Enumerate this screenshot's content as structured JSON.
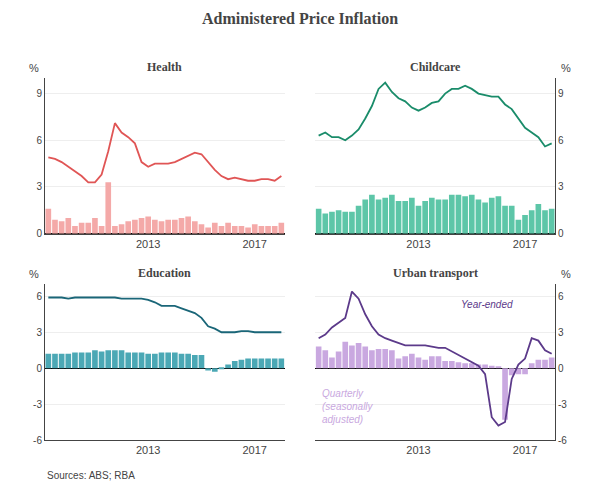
{
  "title": "Administered Price Inflation",
  "annotations": [
    "Sources: ABS; RBA"
  ],
  "chart_data": [
    {
      "type": "bar",
      "title": "Health",
      "ylabel": "%",
      "categories": [
        null,
        null,
        null,
        null,
        null,
        null,
        null,
        null,
        null,
        null,
        null,
        null,
        null,
        null,
        null,
        "2013",
        null,
        null,
        null,
        null,
        null,
        null,
        null,
        null,
        null,
        null,
        null,
        null,
        null,
        null,
        null,
        "2017",
        null,
        null,
        null,
        null
      ],
      "series": [
        {
          "type": "bar",
          "color": "#f4a9a8",
          "values": [
            1.6,
            0.9,
            0.8,
            1.0,
            0.5,
            0.7,
            0.7,
            1.0,
            0.5,
            3.3,
            0.5,
            0.6,
            0.8,
            0.9,
            1.0,
            1.1,
            0.9,
            0.8,
            0.9,
            0.9,
            1.0,
            1.1,
            0.8,
            0.6,
            0.4,
            0.7,
            0.5,
            0.7,
            0.5,
            0.5,
            0.4,
            0.6,
            0.5,
            0.5,
            0.5,
            0.7
          ]
        },
        {
          "type": "line",
          "color": "#e05555",
          "values": [
            4.9,
            4.8,
            4.6,
            4.3,
            4.0,
            3.7,
            3.3,
            3.3,
            3.8,
            5.3,
            7.1,
            6.5,
            6.2,
            5.8,
            4.6,
            4.3,
            4.5,
            4.5,
            4.5,
            4.6,
            4.8,
            5.0,
            5.2,
            5.1,
            4.6,
            4.1,
            3.7,
            3.5,
            3.6,
            3.5,
            3.4,
            3.4,
            3.5,
            3.5,
            3.4,
            3.7
          ]
        }
      ],
      "ylim": [
        0,
        10
      ],
      "yticks": [
        0,
        3,
        6,
        9
      ],
      "grid": true
    },
    {
      "type": "bar",
      "title": "Childcare",
      "ylabel": "%",
      "categories": [
        null,
        null,
        null,
        null,
        null,
        null,
        null,
        null,
        null,
        null,
        null,
        null,
        null,
        null,
        null,
        "2013",
        null,
        null,
        null,
        null,
        null,
        null,
        null,
        null,
        null,
        null,
        null,
        null,
        null,
        null,
        null,
        "2017",
        null,
        null,
        null,
        null
      ],
      "series": [
        {
          "type": "bar",
          "color": "#5dc6a8",
          "values": [
            1.6,
            1.3,
            1.4,
            1.5,
            1.4,
            1.4,
            1.8,
            2.2,
            2.5,
            2.2,
            2.3,
            2.5,
            2.1,
            2.1,
            2.3,
            1.8,
            2.1,
            2.3,
            2.2,
            2.2,
            2.5,
            2.5,
            2.4,
            2.5,
            2.2,
            2.0,
            2.3,
            2.4,
            1.8,
            1.8,
            0.9,
            1.2,
            1.5,
            1.9,
            1.5,
            1.6
          ]
        },
        {
          "type": "line",
          "color": "#1a8c6a",
          "values": [
            6.3,
            6.5,
            6.2,
            6.2,
            6.0,
            6.3,
            6.7,
            7.4,
            8.2,
            9.3,
            9.7,
            9.1,
            8.7,
            8.5,
            8.1,
            7.9,
            8.1,
            8.4,
            8.5,
            9.0,
            9.3,
            9.3,
            9.5,
            9.3,
            9.0,
            8.9,
            8.8,
            8.8,
            8.3,
            8.0,
            7.4,
            6.8,
            6.5,
            6.2,
            5.6,
            5.8
          ]
        }
      ],
      "ylim": [
        0,
        10
      ],
      "yticks": [
        0,
        3,
        6,
        9
      ],
      "grid": true
    },
    {
      "type": "bar",
      "title": "Education",
      "ylabel": "%",
      "categories": [
        null,
        null,
        null,
        null,
        null,
        null,
        null,
        null,
        null,
        null,
        null,
        null,
        null,
        null,
        null,
        "2013",
        null,
        null,
        null,
        null,
        null,
        null,
        null,
        null,
        null,
        null,
        null,
        null,
        null,
        null,
        null,
        "2017",
        null,
        null,
        null,
        null
      ],
      "series": [
        {
          "type": "bar",
          "color": "#4ba8b5",
          "values": [
            1.2,
            1.2,
            1.2,
            1.2,
            1.3,
            1.3,
            1.3,
            1.5,
            1.4,
            1.5,
            1.5,
            1.5,
            1.3,
            1.3,
            1.3,
            1.2,
            1.2,
            1.3,
            1.3,
            1.3,
            1.2,
            1.2,
            1.1,
            1.1,
            -0.2,
            -0.3,
            -0.1,
            0.3,
            0.6,
            0.7,
            0.8,
            0.8,
            0.8,
            0.8,
            0.8,
            0.8
          ]
        },
        {
          "type": "line",
          "color": "#1a6678",
          "values": [
            5.9,
            5.9,
            5.9,
            5.8,
            5.9,
            5.9,
            5.9,
            5.9,
            5.9,
            5.9,
            5.9,
            5.8,
            5.8,
            5.8,
            5.8,
            5.7,
            5.5,
            5.2,
            5.2,
            5.2,
            5.0,
            4.8,
            4.6,
            4.2,
            3.5,
            3.3,
            3.0,
            3.0,
            3.0,
            3.1,
            3.1,
            3.0,
            3.0,
            3.0,
            3.0,
            3.0
          ]
        }
      ],
      "ylim": [
        -6,
        7
      ],
      "yticks": [
        -6,
        -3,
        0,
        3,
        6
      ],
      "grid": true
    },
    {
      "type": "bar",
      "title": "Urban transport",
      "ylabel": "%",
      "categories": [
        null,
        null,
        null,
        null,
        null,
        null,
        null,
        null,
        null,
        null,
        null,
        null,
        null,
        null,
        null,
        "2013",
        null,
        null,
        null,
        null,
        null,
        null,
        null,
        null,
        null,
        null,
        null,
        null,
        null,
        null,
        null,
        "2017",
        null,
        null,
        null,
        null
      ],
      "series": [
        {
          "type": "bar",
          "name": "Quarterly\n(seasonally\nadjusted)",
          "color": "#c9a8e0",
          "values": [
            1.8,
            1.5,
            0.9,
            1.4,
            2.2,
            1.9,
            2.1,
            1.8,
            1.5,
            1.6,
            1.6,
            1.5,
            0.8,
            1.0,
            1.2,
            0.9,
            0.7,
            1.0,
            1.0,
            0.6,
            0.6,
            0.5,
            0.4,
            0.4,
            0.3,
            0.3,
            0.2,
            0.1,
            -4.3,
            -0.6,
            -0.5,
            -0.5,
            0.4,
            0.7,
            0.7,
            0.9
          ]
        },
        {
          "type": "line",
          "name": "Year-ended",
          "color": "#5c3a8a",
          "values": [
            2.5,
            2.8,
            3.4,
            3.8,
            4.2,
            6.4,
            5.8,
            4.5,
            3.5,
            2.8,
            2.5,
            2.3,
            2.1,
            1.9,
            1.9,
            1.9,
            1.9,
            1.8,
            1.7,
            1.7,
            1.4,
            1.1,
            0.8,
            0.5,
            0.2,
            -0.5,
            -4.1,
            -4.8,
            -4.5,
            -0.9,
            0.3,
            0.8,
            2.5,
            2.3,
            1.5,
            1.2
          ]
        }
      ],
      "ylim": [
        -6,
        7
      ],
      "yticks": [
        -6,
        -3,
        0,
        3,
        6
      ],
      "grid": true
    }
  ]
}
